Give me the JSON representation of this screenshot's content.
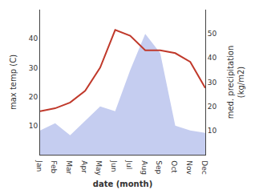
{
  "chart_data": {
    "type": "line",
    "categories": [
      "Jan",
      "Feb",
      "Mar",
      "Apr",
      "May",
      "Jun",
      "Jul",
      "Aug",
      "Sep",
      "Oct",
      "Nov",
      "Dec"
    ],
    "series": [
      {
        "type": "area",
        "axis": "y2",
        "color": "#c5cdf0",
        "values": [
          10,
          13,
          8,
          14,
          20,
          18,
          35,
          50,
          42,
          12,
          10,
          9
        ]
      },
      {
        "type": "line",
        "color": "#c0392b",
        "values": [
          15,
          16,
          18,
          22,
          30,
          43,
          41,
          36,
          36,
          35,
          32,
          23
        ]
      }
    ],
    "xlabel": "date (month)",
    "ylabel": "max temp (C)",
    "y2label": "med. precipitation\n(kg/m2)",
    "ylim": [
      0,
      50
    ],
    "yticks": [
      10,
      20,
      30,
      40
    ],
    "y2lim": [
      0,
      60
    ],
    "y2ticks": [
      10,
      20,
      30,
      40,
      50
    ],
    "grid": false
  }
}
